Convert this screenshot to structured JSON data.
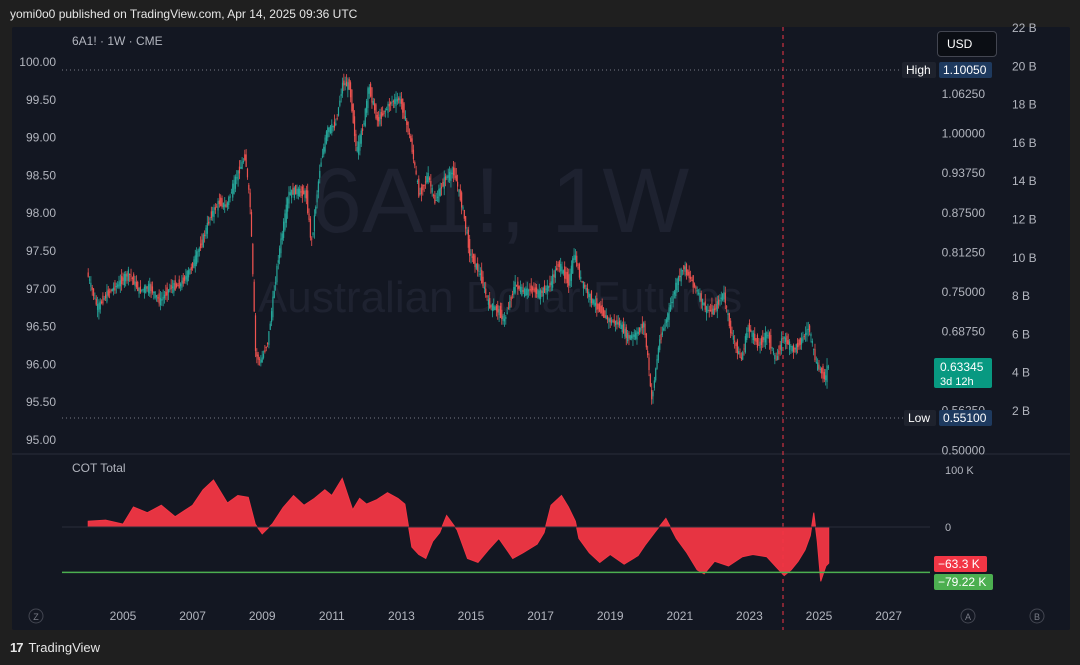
{
  "publisher_line": "yomi0o0 published on TradingView.com, Apr 14, 2025 09:36 UTC",
  "footer_brand": "TradingView",
  "currency_button": "USD",
  "chart_data": [
    {
      "type": "candlestick",
      "title": "6A1! · 1W · CME",
      "watermark_symbol": "6A1!, 1W",
      "watermark_name": "Australian Dollar Futures",
      "x_ticks": [
        "2005",
        "2007",
        "2009",
        "2011",
        "2013",
        "2015",
        "2017",
        "2019",
        "2021",
        "2023",
        "2025",
        "2027"
      ],
      "left_axis_ticks": [
        "100.00",
        "99.50",
        "99.00",
        "98.50",
        "98.00",
        "97.50",
        "97.00",
        "96.50",
        "96.00",
        "95.50",
        "95.00"
      ],
      "price_axis_ticks": [
        "1.06250",
        "1.00000",
        "0.93750",
        "0.87500",
        "0.81250",
        "0.75000",
        "0.68750",
        "0.56250",
        "0.50000"
      ],
      "volume_axis_ticks": [
        "22 B",
        "20 B",
        "18 B",
        "16 B",
        "14 B",
        "12 B",
        "10 B",
        "8 B",
        "6 B",
        "4 B",
        "2 B"
      ],
      "high_label": "High",
      "high_value": "1.10050",
      "low_label": "Low",
      "low_value": "0.55100",
      "last_price": "0.63345",
      "countdown": "3d 12h",
      "price_path": [
        [
          2004.0,
          0.781
        ],
        [
          2004.3,
          0.725
        ],
        [
          2004.6,
          0.748
        ],
        [
          2004.9,
          0.762
        ],
        [
          2005.2,
          0.78
        ],
        [
          2005.5,
          0.752
        ],
        [
          2005.8,
          0.758
        ],
        [
          2006.1,
          0.735
        ],
        [
          2006.4,
          0.757
        ],
        [
          2006.7,
          0.762
        ],
        [
          2007.0,
          0.788
        ],
        [
          2007.3,
          0.828
        ],
        [
          2007.55,
          0.87
        ],
        [
          2007.8,
          0.892
        ],
        [
          2008.0,
          0.885
        ],
        [
          2008.3,
          0.932
        ],
        [
          2008.55,
          0.965
        ],
        [
          2008.7,
          0.88
        ],
        [
          2008.85,
          0.65
        ],
        [
          2009.0,
          0.64
        ],
        [
          2009.2,
          0.672
        ],
        [
          2009.5,
          0.805
        ],
        [
          2009.8,
          0.905
        ],
        [
          2010.0,
          0.91
        ],
        [
          2010.3,
          0.905
        ],
        [
          2010.45,
          0.825
        ],
        [
          2010.7,
          0.948
        ],
        [
          2010.9,
          1.005
        ],
        [
          2011.15,
          1.015
        ],
        [
          2011.35,
          1.08
        ],
        [
          2011.55,
          1.075
        ],
        [
          2011.75,
          0.97
        ],
        [
          2011.95,
          1.015
        ],
        [
          2012.1,
          1.075
        ],
        [
          2012.35,
          1.02
        ],
        [
          2012.55,
          1.035
        ],
        [
          2012.75,
          1.05
        ],
        [
          2013.0,
          1.055
        ],
        [
          2013.3,
          0.99
        ],
        [
          2013.55,
          0.902
        ],
        [
          2013.8,
          0.935
        ],
        [
          2014.0,
          0.892
        ],
        [
          2014.3,
          0.93
        ],
        [
          2014.55,
          0.94
        ],
        [
          2014.8,
          0.882
        ],
        [
          2015.0,
          0.812
        ],
        [
          2015.3,
          0.778
        ],
        [
          2015.55,
          0.73
        ],
        [
          2015.8,
          0.722
        ],
        [
          2016.0,
          0.705
        ],
        [
          2016.3,
          0.762
        ],
        [
          2016.55,
          0.75
        ],
        [
          2016.8,
          0.755
        ],
        [
          2017.0,
          0.747
        ],
        [
          2017.3,
          0.76
        ],
        [
          2017.55,
          0.795
        ],
        [
          2017.85,
          0.765
        ],
        [
          2018.0,
          0.81
        ],
        [
          2018.2,
          0.768
        ],
        [
          2018.5,
          0.738
        ],
        [
          2018.8,
          0.718
        ],
        [
          2019.0,
          0.705
        ],
        [
          2019.3,
          0.7
        ],
        [
          2019.55,
          0.678
        ],
        [
          2019.8,
          0.683
        ],
        [
          2020.0,
          0.7
        ],
        [
          2020.15,
          0.63
        ],
        [
          2020.22,
          0.575
        ],
        [
          2020.45,
          0.672
        ],
        [
          2020.7,
          0.715
        ],
        [
          2020.95,
          0.765
        ],
        [
          2021.15,
          0.79
        ],
        [
          2021.5,
          0.755
        ],
        [
          2021.8,
          0.722
        ],
        [
          2022.0,
          0.72
        ],
        [
          2022.3,
          0.748
        ],
        [
          2022.5,
          0.688
        ],
        [
          2022.8,
          0.642
        ],
        [
          2023.0,
          0.695
        ],
        [
          2023.3,
          0.665
        ],
        [
          2023.55,
          0.685
        ],
        [
          2023.8,
          0.64
        ],
        [
          2024.0,
          0.68
        ],
        [
          2024.3,
          0.658
        ],
        [
          2024.55,
          0.675
        ],
        [
          2024.75,
          0.695
        ],
        [
          2024.95,
          0.637
        ],
        [
          2025.1,
          0.625
        ],
        [
          2025.22,
          0.612
        ],
        [
          2025.28,
          0.633
        ]
      ]
    },
    {
      "type": "area",
      "title": "COT Total",
      "axis_ticks": [
        "100 K",
        "0"
      ],
      "current_value_label": "−63.3 K",
      "reference_value_label": "−79.22 K",
      "reference_value": -79.22,
      "series_color": "#f23645",
      "reference_color": "#4caf50",
      "values_k": [
        [
          2004.0,
          10
        ],
        [
          2004.5,
          12
        ],
        [
          2005.0,
          5
        ],
        [
          2005.3,
          35
        ],
        [
          2005.7,
          25
        ],
        [
          2006.1,
          38
        ],
        [
          2006.5,
          18
        ],
        [
          2006.8,
          30
        ],
        [
          2007.0,
          38
        ],
        [
          2007.3,
          65
        ],
        [
          2007.6,
          82
        ],
        [
          2007.8,
          62
        ],
        [
          2008.0,
          42
        ],
        [
          2008.3,
          55
        ],
        [
          2008.6,
          52
        ],
        [
          2008.8,
          5
        ],
        [
          2009.0,
          -12
        ],
        [
          2009.3,
          6
        ],
        [
          2009.6,
          34
        ],
        [
          2009.9,
          55
        ],
        [
          2010.2,
          38
        ],
        [
          2010.5,
          50
        ],
        [
          2010.8,
          65
        ],
        [
          2011.0,
          55
        ],
        [
          2011.3,
          85
        ],
        [
          2011.6,
          30
        ],
        [
          2011.8,
          50
        ],
        [
          2012.0,
          40
        ],
        [
          2012.3,
          48
        ],
        [
          2012.6,
          60
        ],
        [
          2012.9,
          50
        ],
        [
          2013.1,
          40
        ],
        [
          2013.3,
          -35
        ],
        [
          2013.5,
          -48
        ],
        [
          2013.7,
          -55
        ],
        [
          2013.9,
          -25
        ],
        [
          2014.1,
          -10
        ],
        [
          2014.3,
          20
        ],
        [
          2014.6,
          -5
        ],
        [
          2014.9,
          -55
        ],
        [
          2015.2,
          -62
        ],
        [
          2015.5,
          -40
        ],
        [
          2015.8,
          -20
        ],
        [
          2016.2,
          -55
        ],
        [
          2016.5,
          -45
        ],
        [
          2016.9,
          -30
        ],
        [
          2017.1,
          -10
        ],
        [
          2017.3,
          38
        ],
        [
          2017.6,
          55
        ],
        [
          2017.8,
          35
        ],
        [
          2018.0,
          10
        ],
        [
          2018.1,
          -20
        ],
        [
          2018.4,
          -45
        ],
        [
          2018.7,
          -62
        ],
        [
          2019.0,
          -48
        ],
        [
          2019.4,
          -65
        ],
        [
          2019.8,
          -50
        ],
        [
          2020.0,
          -32
        ],
        [
          2020.3,
          -8
        ],
        [
          2020.6,
          15
        ],
        [
          2020.9,
          -20
        ],
        [
          2021.2,
          -45
        ],
        [
          2021.5,
          -75
        ],
        [
          2021.7,
          -82
        ],
        [
          2022.0,
          -60
        ],
        [
          2022.4,
          -68
        ],
        [
          2022.8,
          -52
        ],
        [
          2023.1,
          -48
        ],
        [
          2023.5,
          -52
        ],
        [
          2023.8,
          -72
        ],
        [
          2024.0,
          -85
        ],
        [
          2024.2,
          -75
        ],
        [
          2024.4,
          -60
        ],
        [
          2024.6,
          -40
        ],
        [
          2024.75,
          -15
        ],
        [
          2024.85,
          25
        ],
        [
          2024.95,
          -25
        ],
        [
          2025.05,
          -95
        ],
        [
          2025.2,
          -68
        ],
        [
          2025.28,
          -63.3
        ]
      ]
    }
  ]
}
